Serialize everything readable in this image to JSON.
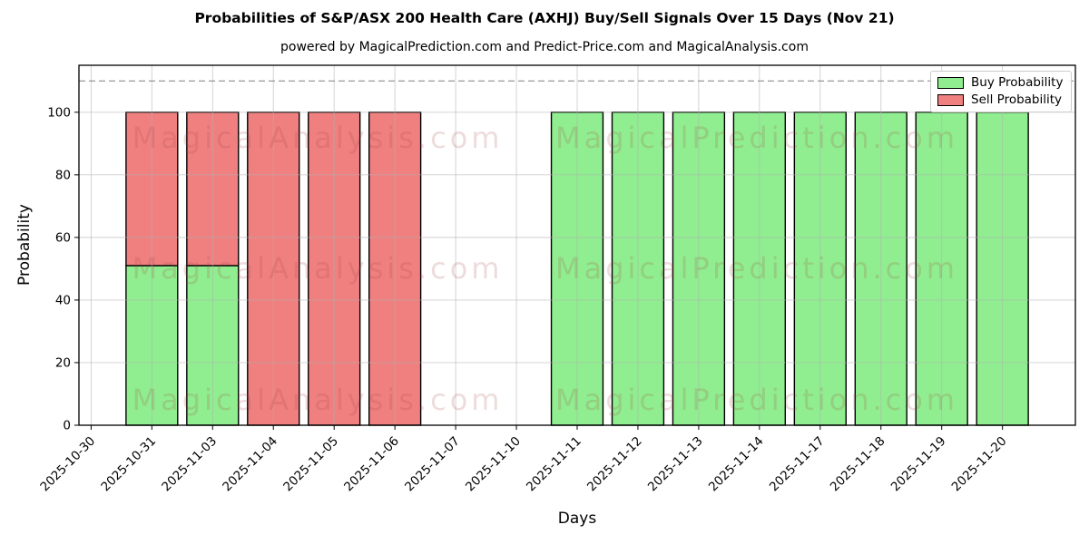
{
  "chart_data": {
    "type": "bar",
    "stacked": true,
    "title": "Probabilities of S&P/ASX 200 Health Care (AXHJ) Buy/Sell Signals Over 15 Days (Nov 21)",
    "subtitle": "powered by MagicalPrediction.com and Predict-Price.com and MagicalAnalysis.com",
    "xlabel": "Days",
    "ylabel": "Probability",
    "categories": [
      "2025-10-30",
      "2025-10-31",
      "2025-11-03",
      "2025-11-04",
      "2025-11-05",
      "2025-11-06",
      "2025-11-07",
      "2025-11-10",
      "2025-11-11",
      "2025-11-12",
      "2025-11-13",
      "2025-11-14",
      "2025-11-17",
      "2025-11-18",
      "2025-11-19",
      "2025-11-20"
    ],
    "series": [
      {
        "name": "Buy Probability",
        "color": "#90EE90",
        "values": [
          0,
          51,
          51,
          0,
          0,
          0,
          0,
          0,
          100,
          100,
          100,
          100,
          100,
          100,
          100,
          100
        ]
      },
      {
        "name": "Sell Probability",
        "color": "#F08080",
        "values": [
          0,
          49,
          49,
          100,
          100,
          100,
          0,
          0,
          0,
          0,
          0,
          0,
          0,
          0,
          0,
          0
        ]
      }
    ],
    "yticks": [
      0,
      20,
      40,
      60,
      80,
      100
    ],
    "ylim": [
      0,
      115
    ],
    "dashed_line_y": 110,
    "grid": true,
    "legend_position": "upper right",
    "bar_width": 0.85,
    "edge_color": "#000000",
    "grid_color": "#b0b0b0",
    "dashed_line_color": "#7f7f7f"
  },
  "watermarks": {
    "left_text": "MagicalAnalysis.com",
    "right_text": "MagicalPrediction.com"
  }
}
